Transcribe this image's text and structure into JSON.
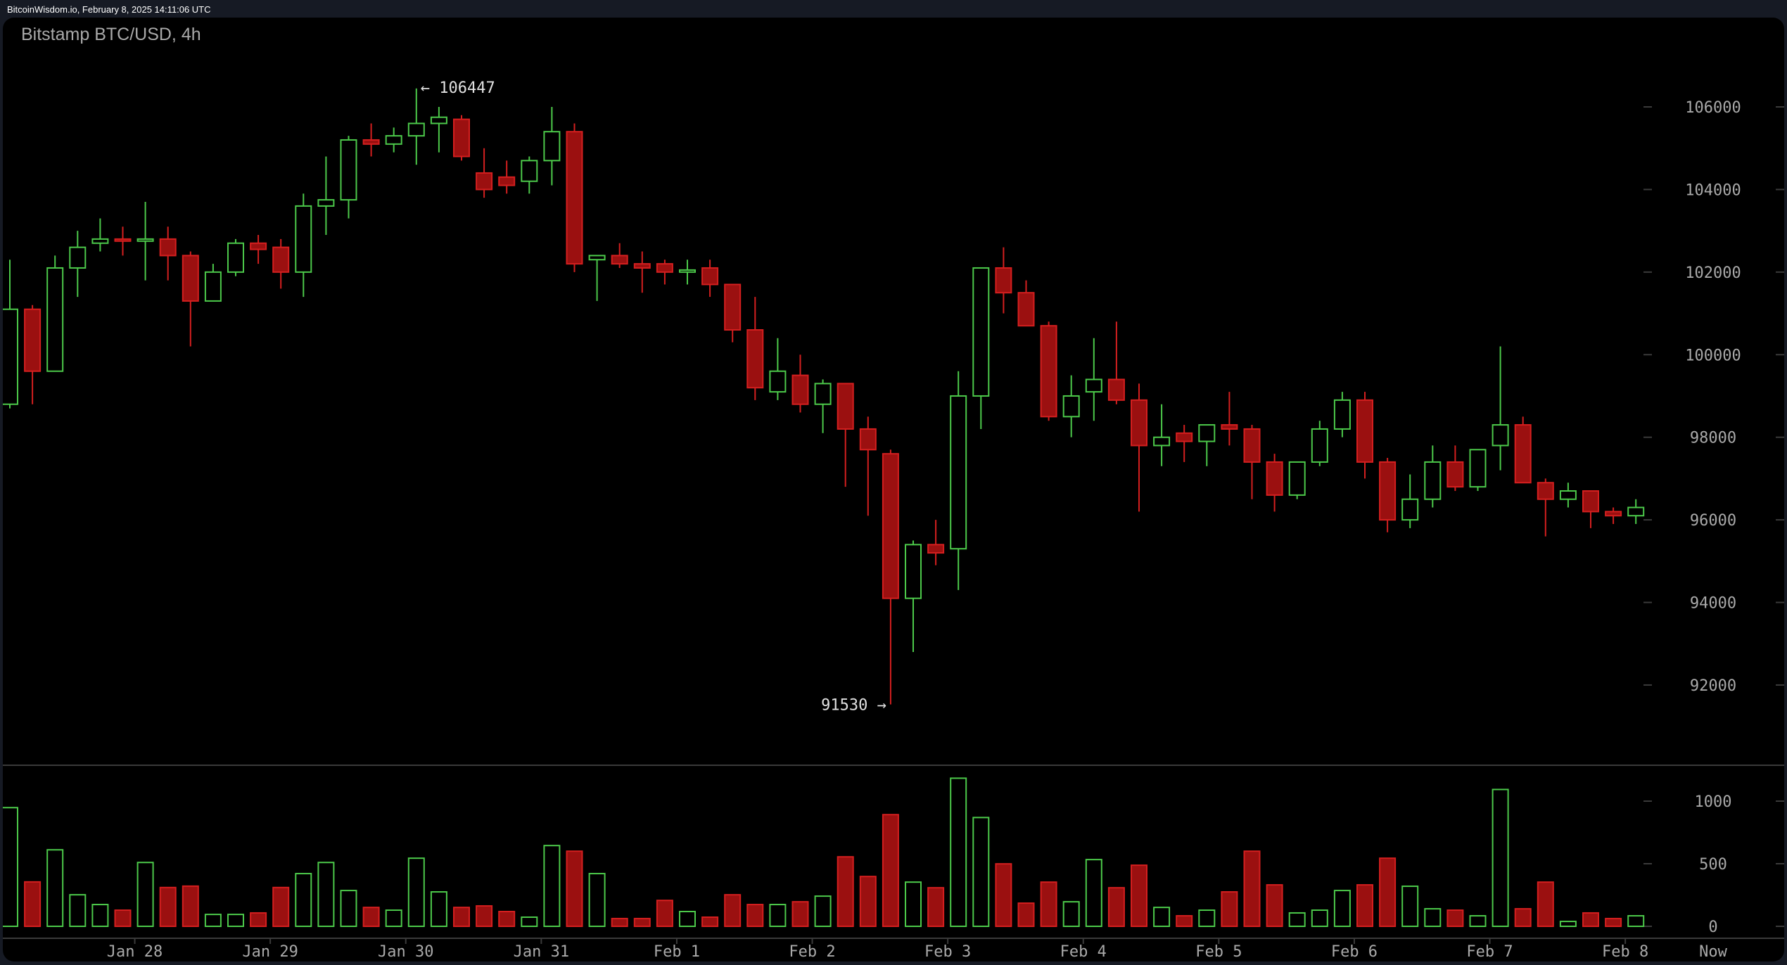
{
  "header": {
    "source_line": "BitcoinWisdom.io, February 8, 2025 14:11:06 UTC"
  },
  "chart": {
    "title": "Bitstamp BTC/USD, 4h",
    "high_annotation": "← 106447",
    "low_annotation": "91530 →",
    "now_label": "Now",
    "colors": {
      "up": "#4cc94a",
      "down": "#d41f1f",
      "down_fill": "#9b1010",
      "axis_text": "#a9a9a9",
      "background": "#000000",
      "frame": "#161a24"
    }
  },
  "chart_data": {
    "type": "candlestick",
    "title": "Bitstamp BTC/USD, 4h",
    "xlabel": "",
    "ylabel": "",
    "ylim": [
      90500,
      107200
    ],
    "y_ticks": [
      92000,
      94000,
      96000,
      98000,
      100000,
      102000,
      104000,
      106000
    ],
    "volume_ticks": [
      0,
      500,
      1000
    ],
    "x_tick_labels": [
      "Jan 28",
      "Jan 29",
      "Jan 30",
      "Jan 31",
      "Feb 1",
      "Feb 2",
      "Feb 3",
      "Feb 4",
      "Feb 5",
      "Feb 6",
      "Feb 7",
      "Feb 8",
      "Now"
    ],
    "x_tick_candle_index": [
      5,
      11,
      17,
      23,
      29,
      35,
      41,
      47,
      53,
      59,
      65,
      71
    ],
    "annotations": [
      {
        "text": "← 106447",
        "value": 106447,
        "candle_index": 18
      },
      {
        "text": "91530 →",
        "value": 91530,
        "candle_index": 39
      }
    ],
    "grid": false,
    "ohlc": [
      [
        98800,
        102300,
        98700,
        101100
      ],
      [
        101100,
        101200,
        98800,
        99600
      ],
      [
        99600,
        102400,
        99600,
        102100
      ],
      [
        102100,
        103000,
        101400,
        102600
      ],
      [
        102700,
        103300,
        102500,
        102800
      ],
      [
        102800,
        103100,
        102400,
        102750
      ],
      [
        102750,
        103700,
        101800,
        102800
      ],
      [
        102800,
        103100,
        101800,
        102400
      ],
      [
        102400,
        102500,
        100200,
        101300
      ],
      [
        101300,
        102200,
        101300,
        102000
      ],
      [
        102000,
        102800,
        101900,
        102700
      ],
      [
        102700,
        102900,
        102200,
        102550
      ],
      [
        102600,
        102800,
        101600,
        102000
      ],
      [
        102000,
        103900,
        101400,
        103600
      ],
      [
        103600,
        104800,
        102900,
        103750
      ],
      [
        103750,
        105300,
        103300,
        105200
      ],
      [
        105200,
        105600,
        104800,
        105100
      ],
      [
        105100,
        105500,
        104900,
        105300
      ],
      [
        105300,
        106447,
        104600,
        105600
      ],
      [
        105600,
        106000,
        104900,
        105750
      ],
      [
        105700,
        105800,
        104700,
        104800
      ],
      [
        104400,
        105000,
        103800,
        104000
      ],
      [
        104300,
        104700,
        103900,
        104100
      ],
      [
        104200,
        104800,
        103900,
        104700
      ],
      [
        104700,
        106000,
        104100,
        105400
      ],
      [
        105400,
        105600,
        102000,
        102200
      ],
      [
        102300,
        102400,
        101300,
        102400
      ],
      [
        102400,
        102700,
        102100,
        102200
      ],
      [
        102200,
        102500,
        101500,
        102100
      ],
      [
        102200,
        102300,
        101700,
        102000
      ],
      [
        102000,
        102300,
        101700,
        102050
      ],
      [
        102100,
        102300,
        101400,
        101700
      ],
      [
        101700,
        101700,
        100300,
        100600
      ],
      [
        100600,
        101400,
        98900,
        99200
      ],
      [
        99100,
        100400,
        98900,
        99600
      ],
      [
        99500,
        100000,
        98600,
        98800
      ],
      [
        98800,
        99400,
        98100,
        99300
      ],
      [
        99300,
        99300,
        96800,
        98200
      ],
      [
        98200,
        98500,
        96100,
        97700
      ],
      [
        97600,
        97700,
        91530,
        94100
      ],
      [
        94100,
        95500,
        92800,
        95400
      ],
      [
        95400,
        96000,
        94900,
        95200
      ],
      [
        95300,
        99600,
        94300,
        99000
      ],
      [
        99000,
        102100,
        98200,
        102100
      ],
      [
        102100,
        102600,
        101000,
        101500
      ],
      [
        101500,
        101800,
        100700,
        100700
      ],
      [
        100700,
        100800,
        98400,
        98500
      ],
      [
        98500,
        99500,
        98000,
        99000
      ],
      [
        99100,
        100400,
        98400,
        99400
      ],
      [
        99400,
        100800,
        98800,
        98900
      ],
      [
        98900,
        99300,
        96200,
        97800
      ],
      [
        97800,
        98800,
        97300,
        98000
      ],
      [
        98100,
        98300,
        97400,
        97900
      ],
      [
        97900,
        98300,
        97300,
        98300
      ],
      [
        98300,
        99100,
        97800,
        98200
      ],
      [
        98200,
        98300,
        96500,
        97400
      ],
      [
        97400,
        97600,
        96200,
        96600
      ],
      [
        96600,
        97400,
        96500,
        97400
      ],
      [
        97400,
        98400,
        97300,
        98200
      ],
      [
        98200,
        99100,
        98000,
        98900
      ],
      [
        98900,
        99100,
        97000,
        97400
      ],
      [
        97400,
        97500,
        95700,
        96000
      ],
      [
        96000,
        97100,
        95800,
        96500
      ],
      [
        96500,
        97800,
        96300,
        97400
      ],
      [
        97400,
        97800,
        96700,
        96800
      ],
      [
        96800,
        97700,
        96700,
        97700
      ],
      [
        97800,
        100200,
        97200,
        98300
      ],
      [
        98300,
        98500,
        96900,
        96900
      ],
      [
        96900,
        97000,
        95600,
        96500
      ],
      [
        96500,
        96900,
        96300,
        96700
      ],
      [
        96700,
        96700,
        95800,
        96200
      ],
      [
        96200,
        96300,
        95900,
        96100
      ],
      [
        96100,
        96500,
        95900,
        96300
      ]
    ],
    "volume": [
      948,
      355,
      611,
      252,
      174,
      129,
      510,
      310,
      321,
      95,
      95,
      107,
      310,
      421,
      510,
      286,
      151,
      129,
      544,
      275,
      151,
      163,
      118,
      73,
      645,
      600,
      421,
      62,
      62,
      207,
      118,
      73,
      252,
      174,
      174,
      196,
      241,
      555,
      398,
      892,
      353,
      308,
      1183,
      869,
      499,
      185,
      353,
      196,
      533,
      308,
      488,
      151,
      84,
      129,
      275,
      600,
      331,
      107,
      129,
      286,
      331,
      544,
      320,
      140,
      129,
      84,
      1093,
      140,
      353,
      39,
      107,
      62,
      84
    ]
  }
}
